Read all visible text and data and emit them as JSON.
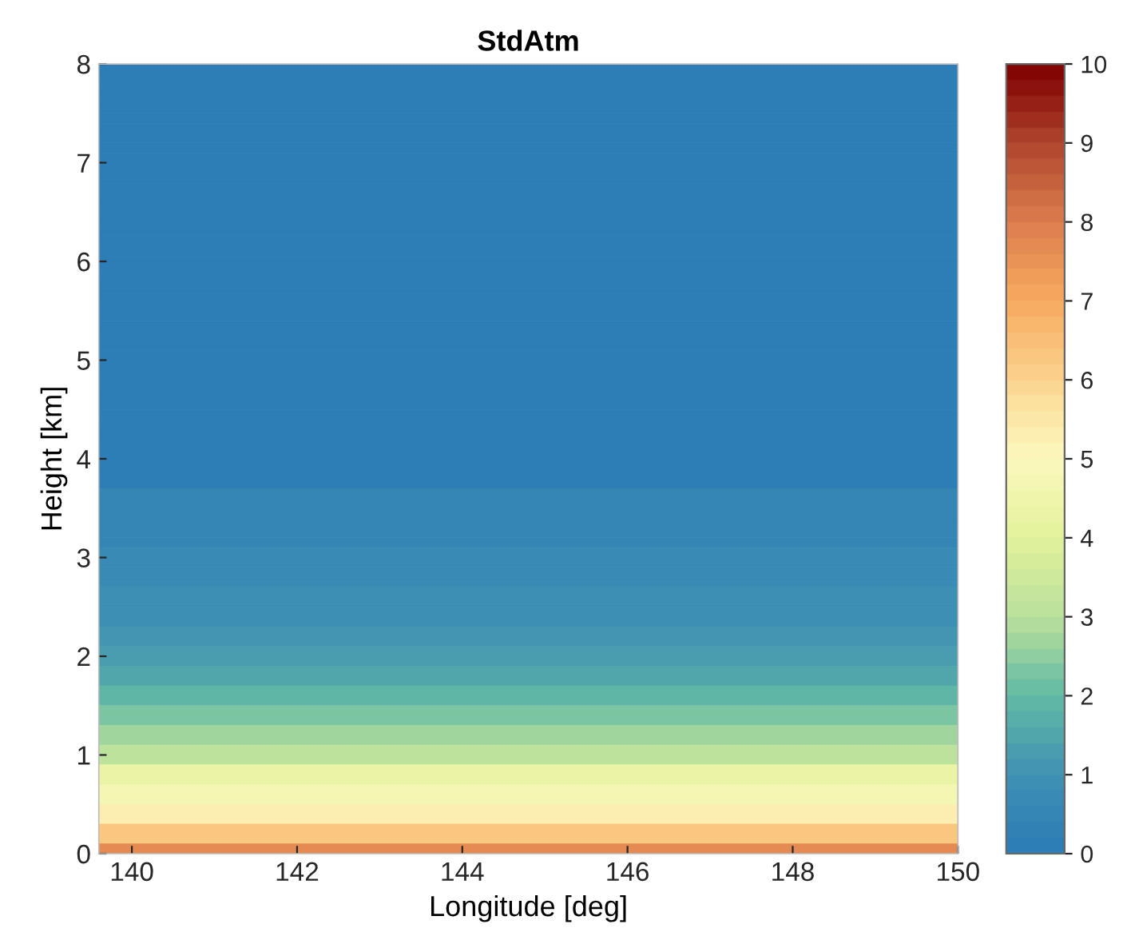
{
  "chart_data": {
    "type": "heatmap",
    "title": "StdAtm",
    "xlabel": "Longitude [deg]",
    "ylabel": "Height [km]",
    "xlim": [
      139.6,
      150
    ],
    "xticks": [
      140,
      142,
      144,
      146,
      148,
      150
    ],
    "ylim": [
      0,
      8
    ],
    "yticks": [
      0,
      1,
      2,
      3,
      4,
      5,
      6,
      7,
      8
    ],
    "cells": [
      [
        0.1
      ],
      [
        0.1
      ],
      [
        0.1
      ],
      [
        0.1
      ],
      [
        0.1
      ],
      [
        0.1
      ],
      [
        0.1
      ],
      [
        0.1
      ],
      [
        0.1
      ],
      [
        0.1
      ],
      [
        0.1
      ],
      [
        0.1
      ],
      [
        0.1
      ],
      [
        0.1
      ],
      [
        0.1
      ],
      [
        0.1
      ],
      [
        0.1
      ],
      [
        0.1
      ],
      [
        0.1
      ],
      [
        0.1
      ],
      [
        0.1
      ],
      [
        0.1
      ],
      [
        0.1
      ],
      [
        0.1
      ],
      [
        0.1
      ],
      [
        0.1
      ],
      [
        0.1
      ],
      [
        0.1
      ],
      [
        0.1
      ],
      [
        0.1
      ],
      [
        0.1
      ],
      [
        0.1
      ],
      [
        0.1
      ],
      [
        0.1
      ],
      [
        0.1
      ],
      [
        0.1
      ],
      [
        0.1
      ],
      [
        0.1
      ],
      [
        0.1
      ],
      [
        0.1
      ],
      [
        0.1
      ],
      [
        0.1
      ],
      [
        0.1
      ],
      [
        0.4
      ],
      [
        0.4
      ],
      [
        0.4
      ],
      [
        0.4
      ],
      [
        0.4
      ],
      [
        0.4
      ],
      [
        0.6
      ],
      [
        0.6
      ],
      [
        0.6
      ],
      [
        0.6
      ],
      [
        0.8
      ],
      [
        0.8
      ],
      [
        0.8
      ],
      [
        0.8
      ],
      [
        1.0
      ],
      [
        1.0
      ],
      [
        1.3
      ],
      [
        1.3
      ],
      [
        1.5
      ],
      [
        1.5
      ],
      [
        1.8
      ],
      [
        1.8
      ],
      [
        2.2
      ],
      [
        2.2
      ],
      [
        2.6
      ],
      [
        2.6
      ],
      [
        3.0
      ],
      [
        3.0
      ],
      [
        4.2
      ],
      [
        4.2
      ],
      [
        4.6
      ],
      [
        4.6
      ],
      [
        5.2
      ],
      [
        5.2
      ],
      [
        6.2
      ],
      [
        6.2
      ],
      [
        7.6
      ]
    ],
    "clim": [
      0,
      10
    ],
    "cticks": [
      0,
      1,
      2,
      3,
      4,
      5,
      6,
      7,
      8,
      9,
      10
    ],
    "grid": false
  }
}
